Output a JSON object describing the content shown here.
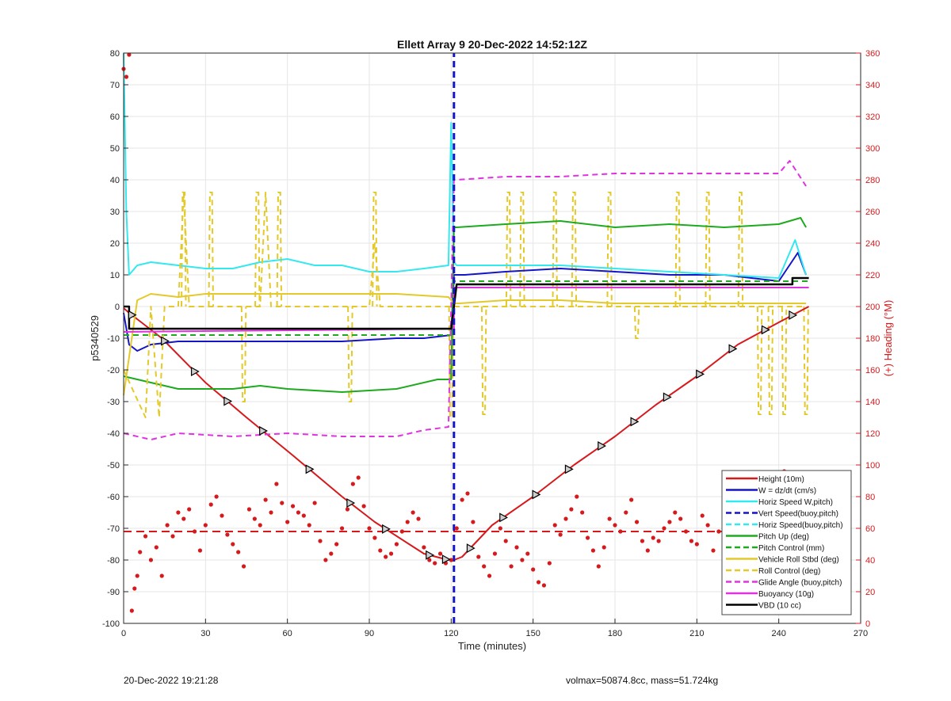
{
  "footer": {
    "left": "20-Dec-2022 19:21:28",
    "right": "volmax=50874.8cc, mass=51.724kg"
  },
  "chart_data": {
    "type": "line",
    "title": "Ellett Array 9 20-Dec-2022 14:52:12Z",
    "xlabel": "Time (minutes)",
    "ylabel": "p5340529",
    "y2label": "(+) Heading (°M)",
    "xlim": [
      0,
      270
    ],
    "ylim": [
      -100,
      80
    ],
    "y2lim": [
      0,
      360
    ],
    "xticks": [
      0,
      30,
      60,
      90,
      120,
      150,
      180,
      210,
      240,
      270
    ],
    "yticks": [
      -100,
      -90,
      -80,
      -70,
      -60,
      -50,
      -40,
      -30,
      -20,
      -10,
      0,
      10,
      20,
      30,
      40,
      50,
      60,
      70,
      80
    ],
    "y2ticks": [
      0,
      20,
      40,
      60,
      80,
      100,
      120,
      140,
      160,
      180,
      200,
      220,
      240,
      260,
      280,
      300,
      320,
      340,
      360
    ],
    "grid": true,
    "legend_position": "bottom-right",
    "colors": {
      "red": "#d7191c",
      "blue": "#1515c8",
      "cyan": "#33e8ee",
      "green": "#1eaa1e",
      "yellow": "#e4c92a",
      "magenta": "#e033e0",
      "black": "#000000",
      "right_axis": "#d7191c"
    },
    "legend": [
      {
        "label": "Height (10m)",
        "color": "#d7191c",
        "style": "solid"
      },
      {
        "label": "W = dz/dt (cm/s)",
        "color": "#1515c8",
        "style": "solid"
      },
      {
        "label": "Horiz Speed W,pitch)",
        "color": "#33e8ee",
        "style": "solid"
      },
      {
        "label": "Vert Speed(buoy,pitch)",
        "color": "#1515c8",
        "style": "dashed"
      },
      {
        "label": "Horiz Speed(buoy,pitch)",
        "color": "#33e8ee",
        "style": "dashed"
      },
      {
        "label": "Pitch Up (deg)",
        "color": "#1eaa1e",
        "style": "solid"
      },
      {
        "label": "Pitch Control (mm)",
        "color": "#1eaa1e",
        "style": "dashed"
      },
      {
        "label": "Vehicle Roll Stbd (deg)",
        "color": "#e4c92a",
        "style": "solid"
      },
      {
        "label": "Roll Control (deg)",
        "color": "#e4c92a",
        "style": "dashed"
      },
      {
        "label": "Glide Angle (buoy,pitch)",
        "color": "#e033e0",
        "style": "dashed"
      },
      {
        "label": "Buoyancy (10g)",
        "color": "#e033e0",
        "style": "solid"
      },
      {
        "label": "VBD (10 cc)",
        "color": "#000000",
        "style": "solid"
      }
    ],
    "series": [
      {
        "key": "height",
        "color": "#d7191c",
        "dash": "",
        "width": 2,
        "x": [
          0,
          2,
          8,
          14,
          30,
          45,
          62,
          80,
          92,
          110,
          119,
          121,
          124,
          135,
          150,
          165,
          180,
          195,
          210,
          225,
          240,
          251
        ],
        "y": [
          -0.5,
          -2,
          -6,
          -10,
          -24,
          -35,
          -47,
          -60,
          -68,
          -78,
          -80,
          -80,
          -79,
          -69,
          -60,
          -50,
          -41,
          -31,
          -22,
          -12,
          -5,
          0
        ]
      },
      {
        "key": "w",
        "color": "#1515c8",
        "dash": "",
        "width": 2,
        "x": [
          0,
          2,
          5,
          10,
          20,
          40,
          60,
          80,
          100,
          110,
          120,
          121,
          125,
          140,
          160,
          180,
          200,
          220,
          240,
          247,
          250
        ],
        "y": [
          -2,
          -12,
          -14,
          -12,
          -11,
          -11,
          -11,
          -11,
          -10,
          -10,
          -9,
          10,
          10,
          11,
          12,
          11,
          10,
          10,
          8,
          17,
          10
        ]
      },
      {
        "key": "horiz_speed",
        "color": "#33e8ee",
        "dash": "",
        "width": 2,
        "x": [
          0,
          1,
          2,
          5,
          10,
          20,
          30,
          40,
          50,
          60,
          70,
          80,
          90,
          100,
          110,
          119,
          120,
          121,
          122,
          130,
          140,
          160,
          180,
          200,
          220,
          240,
          246,
          250
        ],
        "y": [
          80,
          30,
          10,
          13,
          14,
          13,
          12,
          12,
          14,
          15,
          13,
          13,
          11,
          11,
          12,
          13,
          58,
          14,
          13,
          13,
          13,
          13,
          12,
          11,
          10,
          9,
          21,
          10
        ]
      },
      {
        "key": "pitch_up",
        "color": "#1eaa1e",
        "dash": "",
        "width": 2,
        "x": [
          0,
          10,
          20,
          40,
          50,
          60,
          80,
          100,
          115,
          120,
          121,
          122,
          140,
          160,
          180,
          200,
          220,
          240,
          248,
          250
        ],
        "y": [
          -22,
          -24,
          -26,
          -26,
          -25,
          -26,
          -27,
          -26,
          -23,
          -23,
          25,
          25,
          26,
          27,
          25,
          26,
          25,
          26,
          28,
          25
        ]
      },
      {
        "key": "pitch_control",
        "color": "#1eaa1e",
        "dash": "7,5",
        "width": 2,
        "x": [
          0,
          121,
          121,
          251
        ],
        "y": [
          -9,
          -9,
          8,
          8
        ]
      },
      {
        "key": "roll_stbd",
        "color": "#e4c92a",
        "dash": "",
        "width": 2,
        "x": [
          0,
          5,
          10,
          20,
          30,
          40,
          60,
          80,
          100,
          119,
          121,
          123,
          140,
          160,
          180,
          200,
          220,
          240,
          250
        ],
        "y": [
          -28,
          2,
          4,
          3,
          4,
          4,
          4,
          4,
          4,
          3,
          1,
          1,
          2,
          2,
          1,
          1,
          1,
          1,
          1
        ]
      },
      {
        "key": "roll_control",
        "color": "#e4c92a",
        "dash": "7,5",
        "width": 2,
        "x": [
          0,
          8,
          10,
          13,
          15,
          20,
          22,
          24,
          50,
          52,
          54,
          56,
          88,
          90,
          92,
          94,
          121,
          121,
          250
        ],
        "y": [
          -20,
          -35,
          0,
          -35,
          0,
          0,
          36,
          0,
          0,
          36,
          0,
          0,
          0,
          0,
          20,
          0,
          0,
          0,
          0
        ]
      },
      {
        "key": "glide_angle",
        "color": "#e033e0",
        "dash": "7,5",
        "width": 2,
        "x": [
          0,
          10,
          20,
          40,
          60,
          80,
          90,
          100,
          110,
          119,
          121,
          122,
          140,
          160,
          180,
          200,
          220,
          240,
          244,
          250
        ],
        "y": [
          -40,
          -42,
          -40,
          -41,
          -40,
          -41,
          -41,
          -41,
          -39,
          -38,
          40,
          40,
          41,
          41,
          42,
          42,
          42,
          42,
          46,
          38
        ]
      },
      {
        "key": "buoyancy",
        "color": "#e033e0",
        "dash": "",
        "width": 2,
        "x": [
          0,
          121,
          121,
          251
        ],
        "y": [
          -8,
          -7,
          6,
          6
        ]
      },
      {
        "key": "vbd",
        "color": "#000000",
        "dash": "",
        "width": 2.5,
        "x": [
          0,
          2,
          2,
          120,
          121,
          122,
          245,
          245,
          251
        ],
        "y": [
          0,
          0,
          -7,
          -7,
          0,
          7,
          7,
          9,
          9
        ]
      },
      {
        "key": "height_mean",
        "color": "#d7191c",
        "dash": "10,6",
        "width": 2,
        "x": [
          0,
          251
        ],
        "y": [
          -71,
          -71
        ]
      },
      {
        "key": "apogee_marker",
        "color": "#1515c8",
        "dash": "8,5",
        "width": 3,
        "x": [
          121,
          121
        ],
        "y": [
          -100,
          80
        ]
      }
    ],
    "yellow_spikes": [
      {
        "x": 22,
        "to": 36
      },
      {
        "x": 32,
        "to": 36
      },
      {
        "x": 49,
        "to": 36
      },
      {
        "x": 57,
        "to": 36
      },
      {
        "x": 44,
        "to": -30
      },
      {
        "x": 83,
        "to": -30
      },
      {
        "x": 92,
        "to": 36
      },
      {
        "x": 120,
        "to": -35
      },
      {
        "x": 132,
        "to": -34
      },
      {
        "x": 141,
        "to": 36
      },
      {
        "x": 146,
        "to": 36
      },
      {
        "x": 158,
        "to": 36
      },
      {
        "x": 165,
        "to": 36
      },
      {
        "x": 178,
        "to": 36
      },
      {
        "x": 188,
        "to": -10
      },
      {
        "x": 203,
        "to": 36
      },
      {
        "x": 214,
        "to": 36
      },
      {
        "x": 226,
        "to": 36
      },
      {
        "x": 233,
        "to": -34
      },
      {
        "x": 237,
        "to": -34
      },
      {
        "x": 242,
        "to": -34
      },
      {
        "x": 250,
        "to": -34
      }
    ],
    "height_markers_x": [
      3,
      15,
      26,
      38,
      51,
      68,
      83,
      96,
      112,
      118,
      127,
      139,
      151,
      163,
      175,
      187,
      199,
      211,
      223,
      235,
      245
    ],
    "heading": {
      "x": [
        0,
        1,
        2,
        3,
        4,
        5,
        6,
        8,
        10,
        12,
        14,
        16,
        18,
        20,
        22,
        24,
        26,
        28,
        30,
        32,
        34,
        36,
        38,
        40,
        42,
        44,
        46,
        48,
        50,
        52,
        54,
        56,
        58,
        60,
        62,
        64,
        66,
        68,
        70,
        72,
        74,
        76,
        78,
        80,
        82,
        84,
        86,
        88,
        90,
        92,
        94,
        96,
        98,
        100,
        102,
        104,
        106,
        108,
        110,
        112,
        114,
        116,
        118,
        120,
        122,
        124,
        126,
        128,
        130,
        132,
        134,
        136,
        138,
        140,
        142,
        144,
        146,
        148,
        150,
        152,
        154,
        156,
        158,
        160,
        162,
        164,
        166,
        168,
        170,
        172,
        174,
        176,
        178,
        180,
        182,
        184,
        186,
        188,
        190,
        192,
        194,
        196,
        198,
        200,
        202,
        204,
        206,
        208,
        210,
        212,
        214,
        216,
        218,
        220,
        222,
        224,
        226,
        228,
        230,
        232,
        234,
        236,
        238,
        240,
        242,
        244,
        246,
        248,
        250
      ],
      "y": [
        350,
        345,
        359,
        8,
        22,
        30,
        45,
        55,
        40,
        48,
        30,
        62,
        55,
        70,
        66,
        72,
        58,
        46,
        62,
        75,
        80,
        68,
        56,
        50,
        45,
        36,
        72,
        66,
        62,
        78,
        70,
        88,
        76,
        64,
        74,
        70,
        68,
        62,
        76,
        52,
        40,
        44,
        50,
        60,
        72,
        88,
        92,
        74,
        60,
        54,
        46,
        42,
        44,
        50,
        58,
        64,
        70,
        66,
        48,
        40,
        38,
        44,
        38,
        40,
        60,
        78,
        82,
        64,
        42,
        36,
        30,
        44,
        60,
        52,
        36,
        48,
        40,
        44,
        34,
        26,
        24,
        38,
        62,
        56,
        66,
        72,
        80,
        70,
        54,
        46,
        36,
        48,
        66,
        62,
        58,
        70,
        78,
        64,
        52,
        46,
        54,
        52,
        60,
        64,
        70,
        66,
        58,
        52,
        50,
        68,
        62,
        46,
        58,
        56,
        48,
        54,
        44,
        30,
        16,
        24,
        40,
        54,
        60,
        70,
        96,
        82,
        70,
        58,
        66
      ]
    }
  }
}
